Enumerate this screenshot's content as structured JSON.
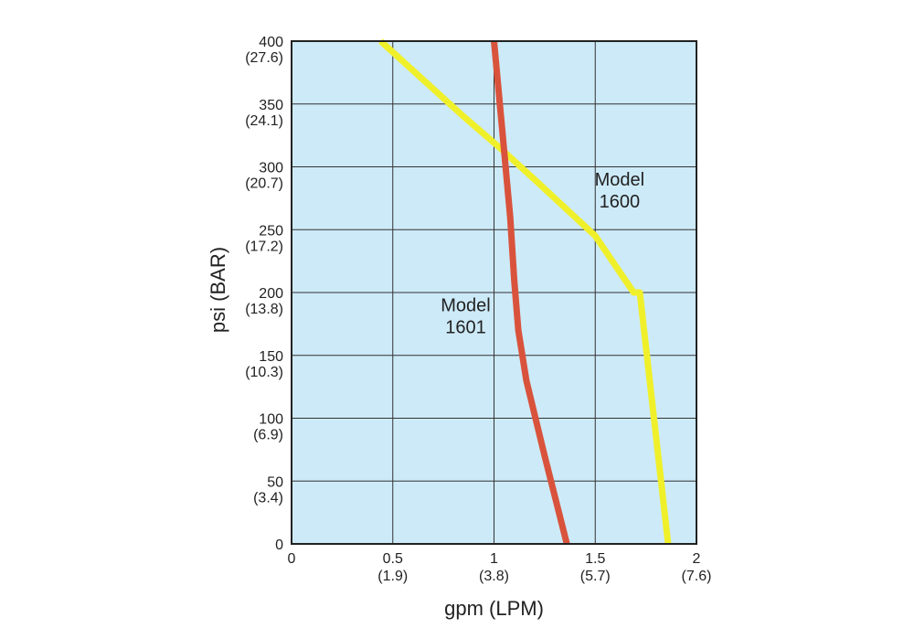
{
  "chart_data": {
    "type": "line",
    "xlabel": "gpm (LPM)",
    "ylabel": "psi (BAR)",
    "xlim": [
      0,
      2
    ],
    "ylim": [
      0,
      400
    ],
    "grid": true,
    "background": "#cdeaf8",
    "x_ticks": [
      {
        "value": 0,
        "label": "0",
        "sublabel": ""
      },
      {
        "value": 0.5,
        "label": "0.5",
        "sublabel": "(1.9)"
      },
      {
        "value": 1,
        "label": "1",
        "sublabel": "(3.8)"
      },
      {
        "value": 1.5,
        "label": "1.5",
        "sublabel": "(5.7)"
      },
      {
        "value": 2,
        "label": "2",
        "sublabel": "(7.6)"
      }
    ],
    "y_ticks": [
      {
        "value": 0,
        "label": "0",
        "sublabel": ""
      },
      {
        "value": 50,
        "label": "50",
        "sublabel": "(3.4)"
      },
      {
        "value": 100,
        "label": "100",
        "sublabel": "(6.9)"
      },
      {
        "value": 150,
        "label": "150",
        "sublabel": "(10.3)"
      },
      {
        "value": 200,
        "label": "200",
        "sublabel": "(13.8)"
      },
      {
        "value": 250,
        "label": "250",
        "sublabel": "(17.2)"
      },
      {
        "value": 300,
        "label": "300",
        "sublabel": "(20.7)"
      },
      {
        "value": 350,
        "label": "350",
        "sublabel": "(24.1)"
      },
      {
        "value": 400,
        "label": "400",
        "sublabel": "(27.6)"
      }
    ],
    "series": [
      {
        "name": "Model 1600",
        "label_lines": [
          "Model",
          "1600"
        ],
        "label_at": [
          1.62,
          285
        ],
        "color": "#f0f02a",
        "points": [
          [
            1.86,
            0
          ],
          [
            1.79,
            100
          ],
          [
            1.72,
            200
          ],
          [
            1.69,
            200
          ],
          [
            1.5,
            245
          ],
          [
            1.2,
            290
          ],
          [
            1.03,
            315
          ],
          [
            0.85,
            340
          ],
          [
            0.44,
            400
          ]
        ]
      },
      {
        "name": "Model 1601",
        "label_lines": [
          "Model",
          "1601"
        ],
        "label_at": [
          0.86,
          185
        ],
        "color": "#d9533c",
        "points": [
          [
            1.36,
            0
          ],
          [
            1.25,
            70
          ],
          [
            1.16,
            130
          ],
          [
            1.12,
            170
          ],
          [
            1.1,
            210
          ],
          [
            1.08,
            260
          ],
          [
            1.04,
            330
          ],
          [
            1.0,
            400
          ]
        ]
      }
    ]
  }
}
